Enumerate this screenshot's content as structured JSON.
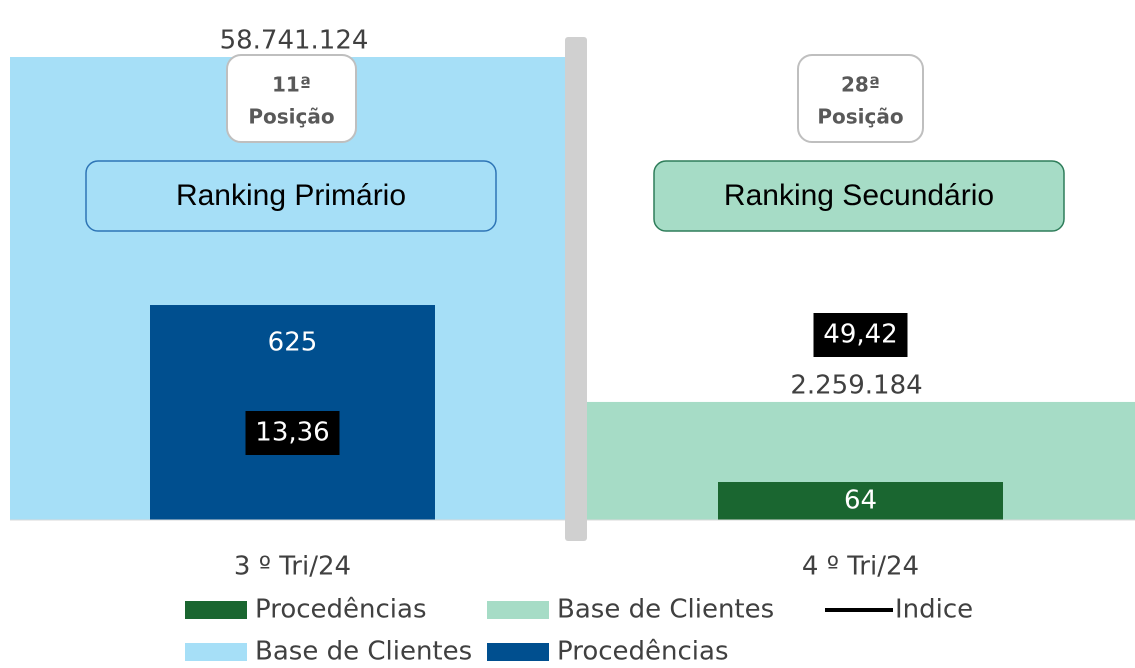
{
  "chart_data": [
    {
      "type": "bar",
      "categories": [
        "3 º Tri/24"
      ],
      "badge": [
        "11ª",
        "Posição"
      ],
      "ranking": "Ranking Primário",
      "ranking_color": "#a6dff7",
      "ranking_border": "#2e75b6",
      "ylim": [
        0,
        58741124
      ],
      "y2lim": [
        0,
        1346
      ],
      "series": [
        {
          "name": "Base de Clientes",
          "color": "#a6dff7",
          "values": [
            58741124
          ],
          "value_labels": [
            "58.741.124"
          ]
        },
        {
          "name": "Procedências",
          "color": "#004f8f",
          "axis": "y2",
          "values": [
            625
          ]
        },
        {
          "name": "Indice",
          "color": "#000000",
          "type": "label",
          "legend": false,
          "values": [
            13.36
          ],
          "value_labels": [
            "13,36"
          ]
        }
      ]
    },
    {
      "type": "bar",
      "categories": [
        "4 º Tri/24"
      ],
      "badge": [
        "28ª",
        "Posição"
      ],
      "ranking": "Ranking Secundário",
      "ranking_color": "#a6dcc6",
      "ranking_border": "#2e7d5a",
      "ylim": [
        0,
        8860000
      ],
      "y2lim": [
        0,
        780
      ],
      "series": [
        {
          "name": "Procedências",
          "color": "#1a6630",
          "axis": "y2",
          "values": [
            64
          ]
        },
        {
          "name": "Base de Clientes",
          "color": "#a6dcc6",
          "values": [
            2259184
          ],
          "value_labels": [
            "2.259.184"
          ]
        },
        {
          "name": "Indice",
          "color": "#000000",
          "type": "label",
          "values": [
            49.42
          ],
          "value_labels": [
            "49,42"
          ]
        }
      ]
    }
  ]
}
